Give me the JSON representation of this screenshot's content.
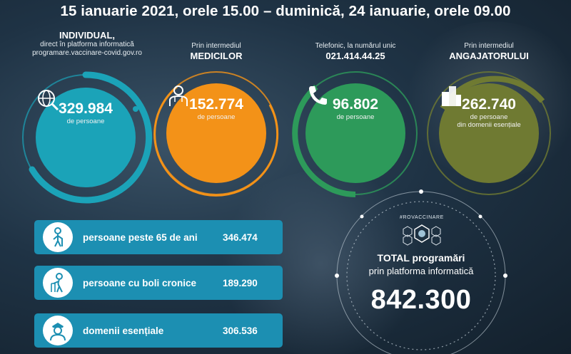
{
  "headline": "15 ianuarie 2021, orele 15.00 – duminică, 24 ianuarie, orele 09.00",
  "colors": {
    "teal": "#1ba3b8",
    "orange": "#f39218",
    "green": "#2d9a5a",
    "olive": "#6f7a32"
  },
  "columns": [
    {
      "cap_big": "INDIVIDUAL,",
      "cap_line1": "direct în platforma informatică",
      "cap_line2": "programare.vaccinare-covid.gov.ro",
      "value": "329.984",
      "unit": "de persoane",
      "unit2": "",
      "icon": "globe-search-icon"
    },
    {
      "cap_pre": "Prin intermediul",
      "cap_big": "MEDICILOR",
      "value": "152.774",
      "unit": "de persoane",
      "unit2": "",
      "icon": "doctor-icon"
    },
    {
      "cap_pre": "Telefonic, la numărul unic",
      "cap_big": "021.414.44.25",
      "value": "96.802",
      "unit": "de persoane",
      "unit2": "",
      "icon": "phone-icon"
    },
    {
      "cap_pre": "Prin intermediul",
      "cap_big": "ANGAJATORULUI",
      "value": "262.740",
      "unit": "de persoane",
      "unit2": "din domenii esențiale",
      "icon": "buildings-icon"
    }
  ],
  "bars": [
    {
      "label": "persoane peste 65 de ani",
      "value": "346.474",
      "icon": "elderly-person-icon"
    },
    {
      "label": "persoane cu boli cronice",
      "value": "189.290",
      "icon": "walker-person-icon"
    },
    {
      "label": "domenii esențiale",
      "value": "306.536",
      "icon": "officer-icon"
    }
  ],
  "total": {
    "tag": "#ROVACCINARE",
    "title": "TOTAL programări",
    "subtitle": "prin platforma informatică",
    "value": "842.300"
  }
}
